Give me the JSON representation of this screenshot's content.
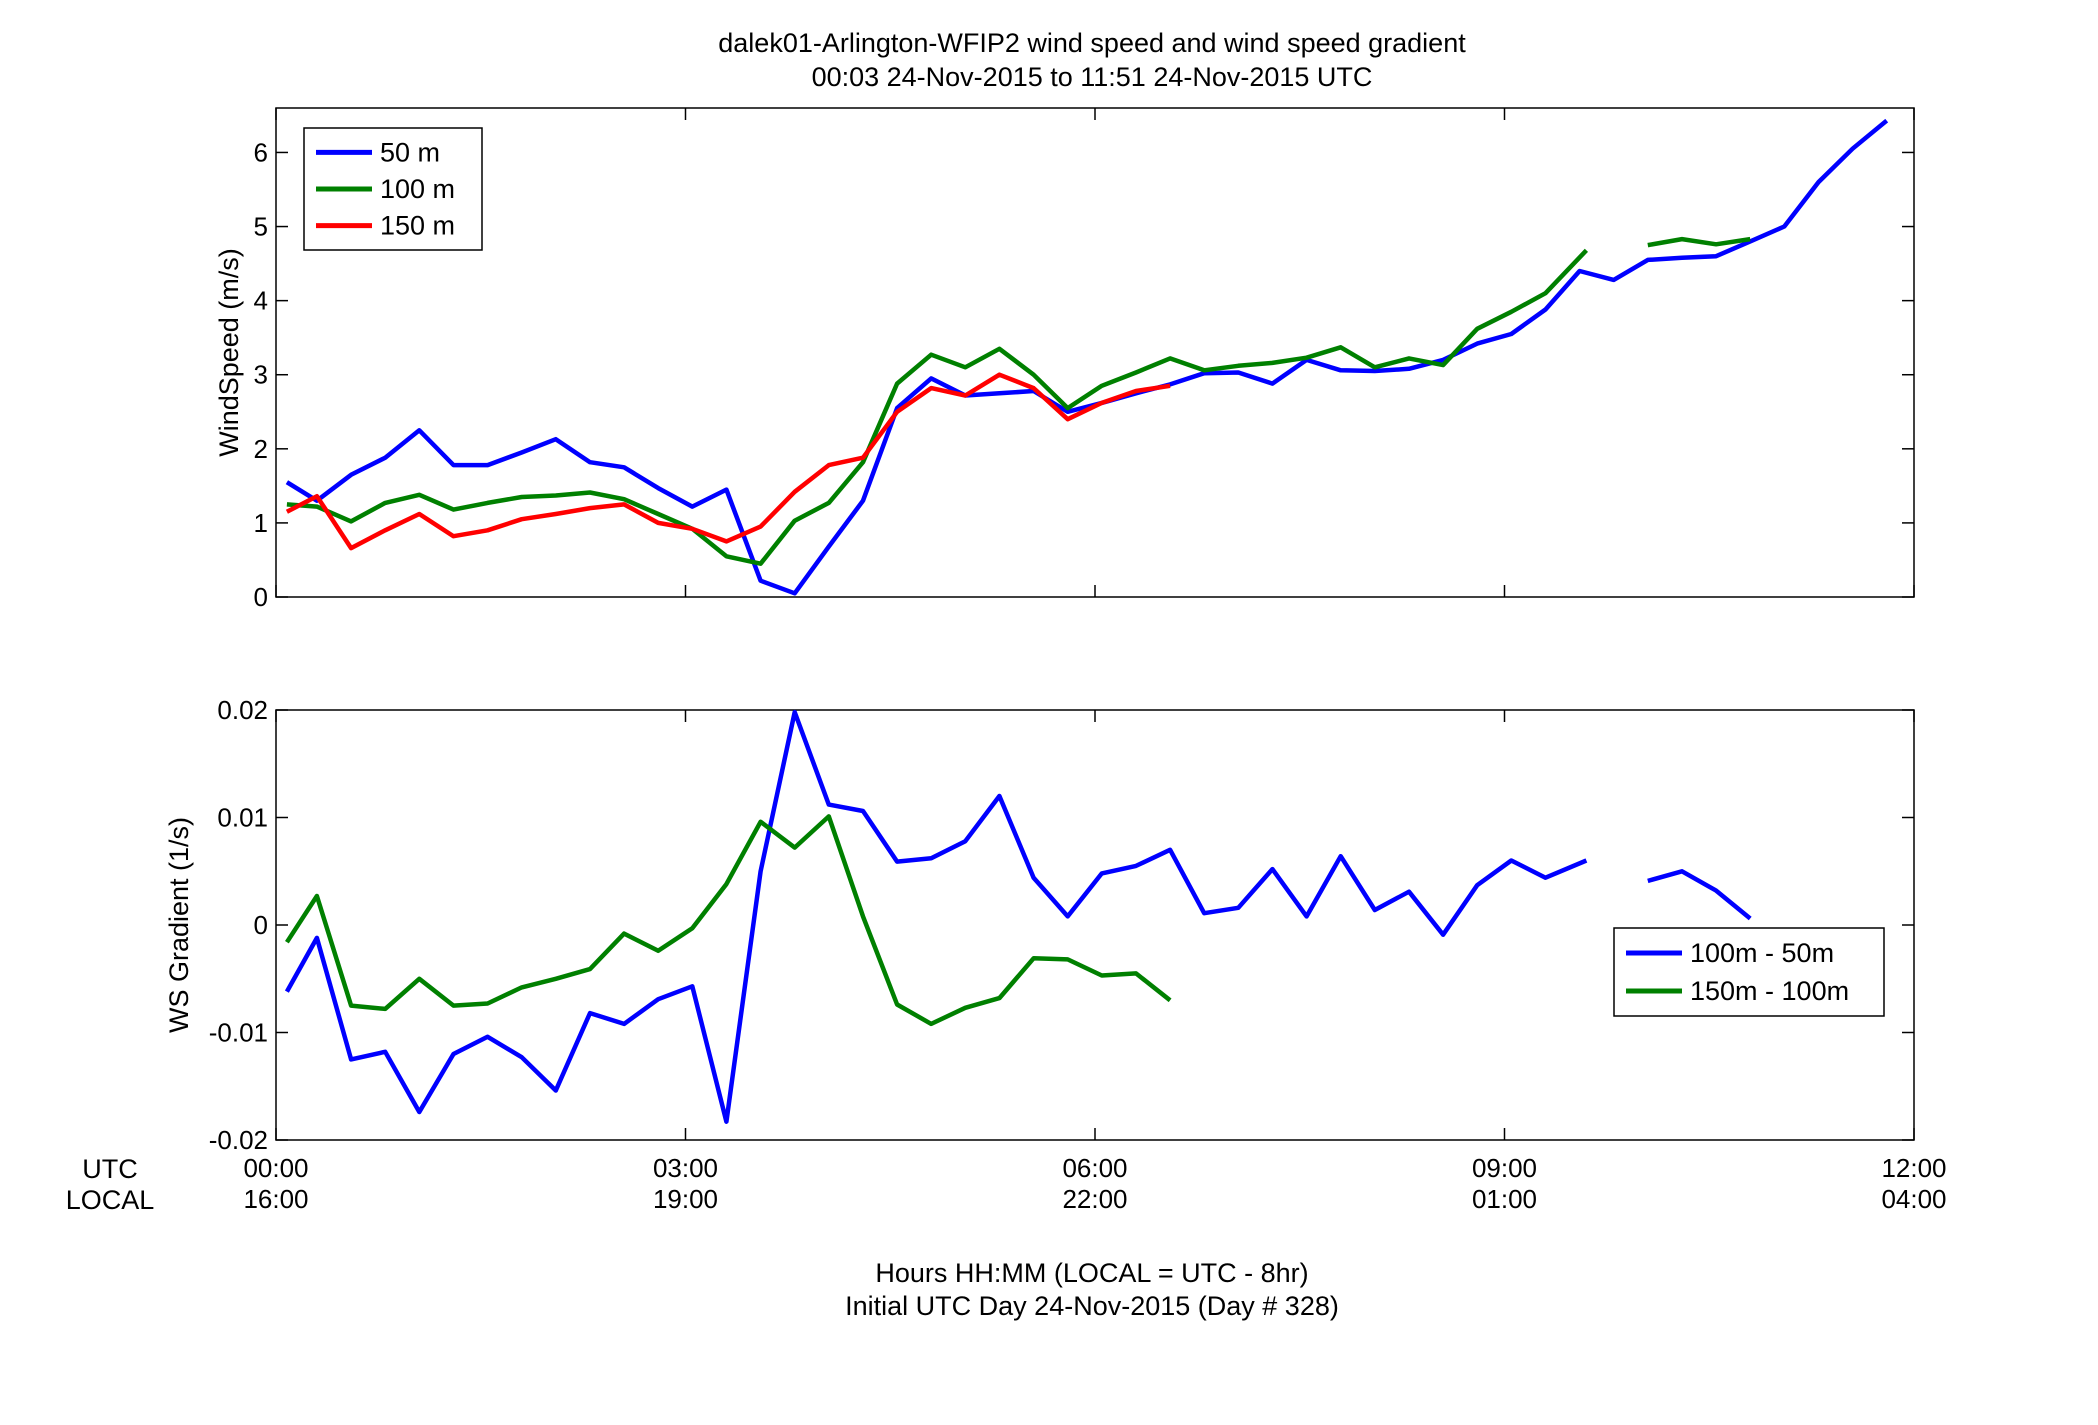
{
  "figure": {
    "title_line1": "dalek01-Arlington-WFIP2  wind speed and wind speed gradient",
    "title_line2": "00:03 24-Nov-2015 to 11:51 24-Nov-2015  UTC",
    "footer_line1": "Hours HH:MM  (LOCAL = UTC - 8hr)",
    "footer_line2": "Initial UTC Day 24-Nov-2015 (Day # 328)",
    "row_label_utc": "UTC",
    "row_label_local": "LOCAL",
    "time_ticks": [
      {
        "hour": 0,
        "utc": "00:00",
        "local": "16:00"
      },
      {
        "hour": 3,
        "utc": "03:00",
        "local": "19:00"
      },
      {
        "hour": 6,
        "utc": "06:00",
        "local": "22:00"
      },
      {
        "hour": 9,
        "utc": "09:00",
        "local": "01:00"
      },
      {
        "hour": 12,
        "utc": "12:00",
        "local": "04:00"
      }
    ]
  },
  "chart_data": [
    {
      "type": "line",
      "ylabel": "WindSpeed (m/s)",
      "xlim": [
        0,
        12
      ],
      "ylim": [
        0,
        6.6
      ],
      "yticks": [
        0,
        1,
        2,
        3,
        4,
        5,
        6
      ],
      "ytick_labels": [
        "0",
        "1",
        "2",
        "3",
        "4",
        "5",
        "6"
      ],
      "grid": false,
      "legend_position": "top-left",
      "series": [
        {
          "name": "50 m",
          "color": "#0000ff",
          "points": [
            [
              0.08,
              1.55
            ],
            [
              0.3,
              1.3
            ],
            [
              0.55,
              1.65
            ],
            [
              0.8,
              1.88
            ],
            [
              1.05,
              2.25
            ],
            [
              1.3,
              1.78
            ],
            [
              1.55,
              1.78
            ],
            [
              1.8,
              1.95
            ],
            [
              2.05,
              2.13
            ],
            [
              2.3,
              1.82
            ],
            [
              2.55,
              1.75
            ],
            [
              2.8,
              1.47
            ],
            [
              3.05,
              1.22
            ],
            [
              3.3,
              1.45
            ],
            [
              3.55,
              0.22
            ],
            [
              3.8,
              0.05
            ],
            [
              4.05,
              0.68
            ],
            [
              4.3,
              1.3
            ],
            [
              4.55,
              2.55
            ],
            [
              4.8,
              2.95
            ],
            [
              5.05,
              2.72
            ],
            [
              5.3,
              2.75
            ],
            [
              5.55,
              2.78
            ],
            [
              5.8,
              2.5
            ],
            [
              6.05,
              2.62
            ],
            [
              6.3,
              2.75
            ],
            [
              6.55,
              2.87
            ],
            [
              6.8,
              3.02
            ],
            [
              7.05,
              3.03
            ],
            [
              7.3,
              2.88
            ],
            [
              7.55,
              3.2
            ],
            [
              7.8,
              3.06
            ],
            [
              8.05,
              3.05
            ],
            [
              8.3,
              3.08
            ],
            [
              8.55,
              3.2
            ],
            [
              8.8,
              3.42
            ],
            [
              9.05,
              3.55
            ],
            [
              9.3,
              3.88
            ],
            [
              9.55,
              4.4
            ],
            [
              9.8,
              4.28
            ],
            [
              10.05,
              4.55
            ],
            [
              10.3,
              4.58
            ],
            [
              10.55,
              4.6
            ],
            [
              10.8,
              4.8
            ],
            [
              11.05,
              5.0
            ],
            [
              11.3,
              5.6
            ],
            [
              11.55,
              6.05
            ],
            [
              11.8,
              6.43
            ]
          ]
        },
        {
          "name": "100 m",
          "color": "#008000",
          "points": [
            [
              0.08,
              1.25
            ],
            [
              0.3,
              1.22
            ],
            [
              0.55,
              1.02
            ],
            [
              0.8,
              1.27
            ],
            [
              1.05,
              1.38
            ],
            [
              1.3,
              1.18
            ],
            [
              1.55,
              1.27
            ],
            [
              1.8,
              1.35
            ],
            [
              2.05,
              1.37
            ],
            [
              2.3,
              1.41
            ],
            [
              2.55,
              1.32
            ],
            [
              2.8,
              1.12
            ],
            [
              3.05,
              0.92
            ],
            [
              3.3,
              0.55
            ],
            [
              3.55,
              0.45
            ],
            [
              3.8,
              1.03
            ],
            [
              4.05,
              1.27
            ],
            [
              4.3,
              1.82
            ],
            [
              4.55,
              2.88
            ],
            [
              4.8,
              3.27
            ],
            [
              5.05,
              3.1
            ],
            [
              5.3,
              3.35
            ],
            [
              5.55,
              3.0
            ],
            [
              5.8,
              2.55
            ],
            [
              6.05,
              2.85
            ],
            [
              6.3,
              3.03
            ],
            [
              6.55,
              3.22
            ],
            [
              6.8,
              3.06
            ],
            [
              7.05,
              3.12
            ],
            [
              7.3,
              3.16
            ],
            [
              7.55,
              3.23
            ],
            [
              7.8,
              3.37
            ],
            [
              8.05,
              3.1
            ],
            [
              8.3,
              3.22
            ],
            [
              8.55,
              3.13
            ],
            [
              8.8,
              3.62
            ],
            [
              9.05,
              3.85
            ],
            [
              9.3,
              4.1
            ],
            [
              9.6,
              4.68
            ],
            null,
            [
              10.05,
              4.75
            ],
            [
              10.3,
              4.83
            ],
            [
              10.55,
              4.76
            ],
            [
              10.8,
              4.83
            ]
          ]
        },
        {
          "name": "150 m",
          "color": "#ff0000",
          "points": [
            [
              0.08,
              1.15
            ],
            [
              0.3,
              1.36
            ],
            [
              0.55,
              0.66
            ],
            [
              0.8,
              0.9
            ],
            [
              1.05,
              1.12
            ],
            [
              1.3,
              0.82
            ],
            [
              1.55,
              0.9
            ],
            [
              1.8,
              1.05
            ],
            [
              2.05,
              1.12
            ],
            [
              2.3,
              1.2
            ],
            [
              2.55,
              1.25
            ],
            [
              2.8,
              1.0
            ],
            [
              3.05,
              0.92
            ],
            [
              3.3,
              0.75
            ],
            [
              3.55,
              0.95
            ],
            [
              3.8,
              1.42
            ],
            [
              4.05,
              1.78
            ],
            [
              4.3,
              1.88
            ],
            [
              4.55,
              2.5
            ],
            [
              4.8,
              2.82
            ],
            [
              5.05,
              2.72
            ],
            [
              5.3,
              3.0
            ],
            [
              5.55,
              2.82
            ],
            [
              5.8,
              2.4
            ],
            [
              6.05,
              2.62
            ],
            [
              6.3,
              2.78
            ],
            [
              6.55,
              2.85
            ]
          ]
        }
      ]
    },
    {
      "type": "line",
      "ylabel": "WS Gradient (1/s)",
      "xlim": [
        0,
        12
      ],
      "ylim": [
        -0.02,
        0.02
      ],
      "yticks": [
        -0.02,
        -0.01,
        0,
        0.01,
        0.02
      ],
      "ytick_labels": [
        "-0.02",
        "-0.01",
        "0",
        "0.01",
        "0.02"
      ],
      "grid": false,
      "legend_position": "right",
      "series": [
        {
          "name": "100m - 50m",
          "color": "#0000ff",
          "points": [
            [
              0.08,
              -0.0062
            ],
            [
              0.3,
              -0.0012
            ],
            [
              0.55,
              -0.0125
            ],
            [
              0.8,
              -0.0118
            ],
            [
              1.05,
              -0.0174
            ],
            [
              1.3,
              -0.012
            ],
            [
              1.55,
              -0.0104
            ],
            [
              1.8,
              -0.0123
            ],
            [
              2.05,
              -0.0154
            ],
            [
              2.3,
              -0.0082
            ],
            [
              2.55,
              -0.0092
            ],
            [
              2.8,
              -0.0069
            ],
            [
              3.05,
              -0.0057
            ],
            [
              3.3,
              -0.0183
            ],
            [
              3.55,
              0.005
            ],
            [
              3.8,
              0.0198
            ],
            [
              4.05,
              0.0112
            ],
            [
              4.3,
              0.0106
            ],
            [
              4.55,
              0.0059
            ],
            [
              4.8,
              0.0062
            ],
            [
              5.05,
              0.0078
            ],
            [
              5.3,
              0.012
            ],
            [
              5.55,
              0.0044
            ],
            [
              5.8,
              0.0008
            ],
            [
              6.05,
              0.0048
            ],
            [
              6.3,
              0.0055
            ],
            [
              6.55,
              0.007
            ],
            [
              6.8,
              0.0011
            ],
            [
              7.05,
              0.0016
            ],
            [
              7.3,
              0.0052
            ],
            [
              7.55,
              0.0008
            ],
            [
              7.8,
              0.0064
            ],
            [
              8.05,
              0.0014
            ],
            [
              8.3,
              0.0031
            ],
            [
              8.55,
              -0.0009
            ],
            [
              8.8,
              0.0037
            ],
            [
              9.05,
              0.006
            ],
            [
              9.3,
              0.0044
            ],
            [
              9.6,
              0.006
            ],
            null,
            [
              10.05,
              0.0041
            ],
            [
              10.3,
              0.005
            ],
            [
              10.55,
              0.0032
            ],
            [
              10.8,
              0.0006
            ]
          ]
        },
        {
          "name": "150m - 100m",
          "color": "#008000",
          "points": [
            [
              0.08,
              -0.0016
            ],
            [
              0.3,
              0.0027
            ],
            [
              0.55,
              -0.0075
            ],
            [
              0.8,
              -0.0078
            ],
            [
              1.05,
              -0.005
            ],
            [
              1.3,
              -0.0075
            ],
            [
              1.55,
              -0.0073
            ],
            [
              1.8,
              -0.0058
            ],
            [
              2.05,
              -0.005
            ],
            [
              2.3,
              -0.0041
            ],
            [
              2.55,
              -0.0008
            ],
            [
              2.8,
              -0.0024
            ],
            [
              3.05,
              -0.0003
            ],
            [
              3.3,
              0.0038
            ],
            [
              3.55,
              0.0096
            ],
            [
              3.8,
              0.0072
            ],
            [
              4.05,
              0.0101
            ],
            [
              4.3,
              0.0008
            ],
            [
              4.55,
              -0.0074
            ],
            [
              4.8,
              -0.0092
            ],
            [
              5.05,
              -0.0077
            ],
            [
              5.3,
              -0.0068
            ],
            [
              5.55,
              -0.0031
            ],
            [
              5.8,
              -0.0032
            ],
            [
              6.05,
              -0.0047
            ],
            [
              6.3,
              -0.0045
            ],
            [
              6.55,
              -0.007
            ]
          ]
        }
      ]
    }
  ]
}
